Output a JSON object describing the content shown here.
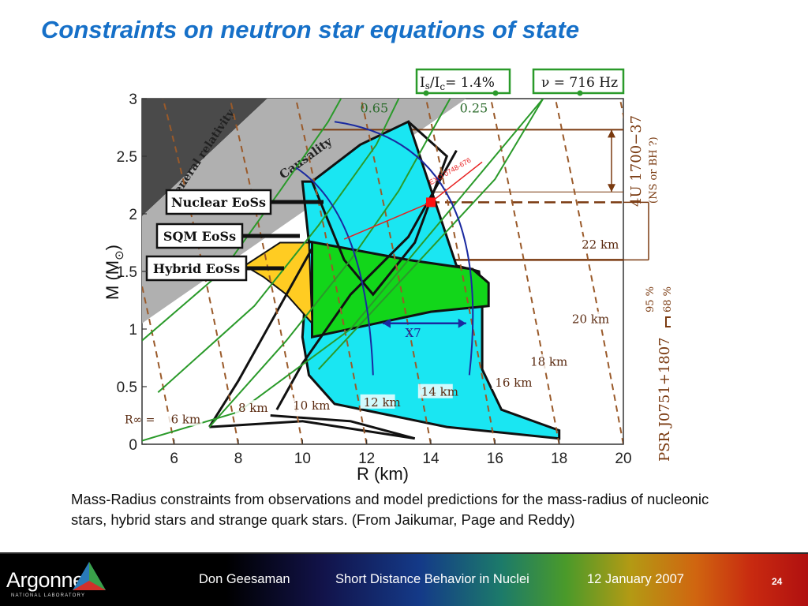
{
  "slide": {
    "title": "Constraints on neutron star equations of state",
    "caption": "Mass-Radius constraints from observations and model predictions for the mass-radius  of nucleonic stars, hybrid stars and strange quark stars.  (From Jaikumar, Page and Reddy)",
    "footer": {
      "author": "Don Geesaman",
      "event": "Short Distance Behavior in Nuclei",
      "date": "12 January 2007",
      "page": "24",
      "logo_text": "Argonne",
      "logo_sub": "NATIONAL LABORATORY"
    }
  },
  "chart_data": {
    "type": "line",
    "xlabel": "R (km)",
    "ylabel": "M (M",
    "ylabel_sub": "⊙",
    "xlim": [
      5,
      20
    ],
    "ylim": [
      0,
      3
    ],
    "xticks": [
      "6",
      "8",
      "10",
      "12",
      "14",
      "16",
      "18",
      "20"
    ],
    "yticks": [
      "0",
      "0.5",
      "1",
      "1.5",
      "2",
      "2.5",
      "3"
    ],
    "region_labels": {
      "gr": "General relativity",
      "causality": "Causality"
    },
    "model_boxes": {
      "nuclear": "Nuclear EoSs",
      "sqm": "SQM EoSs",
      "hybrid": "Hybrid EoSs"
    },
    "observations": {
      "moment_box": "= 1.4%",
      "moment_main": "I",
      "moment_sub1": "s",
      "moment_sub2": "c",
      "moment_main2": "I",
      "nu_box": "ν = 716 Hz",
      "green_labels": [
        "0.65",
        "0.25"
      ],
      "exo": "EXO 0748-676",
      "u4_main": "4U 1700−37",
      "u4_sub": "(NS or BH ?)",
      "psr": "PSR J0751+1807",
      "conf95": "95 %",
      "conf68": "68 %",
      "x7": "X7",
      "r_inf": "R∞ ="
    },
    "radius_curves": [
      {
        "label": "6 km",
        "radius": 6
      },
      {
        "label": "8 km",
        "radius": 8
      },
      {
        "label": "10 km",
        "radius": 10
      },
      {
        "label": "12 km",
        "radius": 12
      },
      {
        "label": "14 km",
        "radius": 14
      },
      {
        "label": "16 km",
        "radius": 16
      },
      {
        "label": "18 km",
        "radius": 18
      },
      {
        "label": "20 km",
        "radius": 20
      },
      {
        "label": "22 km",
        "radius": 22
      }
    ],
    "psr_mass": {
      "mid": 2.1,
      "lower95": 1.6
    },
    "u4_mass": {
      "low": 2.19,
      "high": 2.73
    },
    "exo_point": {
      "R": 14.0,
      "M": 2.1
    },
    "sqm_region": [
      [
        8.2,
        1.55
      ],
      [
        9.3,
        1.75
      ],
      [
        10.2,
        1.75
      ],
      [
        10.3,
        1.05
      ],
      [
        9.5,
        1.3
      ],
      [
        8.8,
        1.45
      ]
    ],
    "hybrid_region": [
      [
        10.2,
        1.76
      ],
      [
        13.3,
        1.6
      ],
      [
        15.3,
        1.52
      ],
      [
        15.8,
        1.4
      ],
      [
        15.8,
        1.2
      ],
      [
        14.0,
        1.15
      ],
      [
        10.3,
        0.93
      ],
      [
        10.3,
        1.75
      ]
    ],
    "nuclear_region": [
      [
        10.3,
        2.28
      ],
      [
        11.8,
        2.6
      ],
      [
        13.3,
        2.8
      ],
      [
        14.8,
        1.55
      ],
      [
        15.5,
        1.5
      ],
      [
        15.6,
        1.3
      ],
      [
        15.6,
        0.65
      ],
      [
        16.2,
        0.3
      ],
      [
        18.0,
        0.12
      ],
      [
        18.0,
        0.05
      ],
      [
        14.5,
        0.15
      ],
      [
        11.0,
        0.35
      ],
      [
        10.2,
        0.6
      ],
      [
        10.0,
        0.93
      ],
      [
        10.2,
        1.75
      ],
      [
        10.0,
        2.28
      ]
    ]
  }
}
